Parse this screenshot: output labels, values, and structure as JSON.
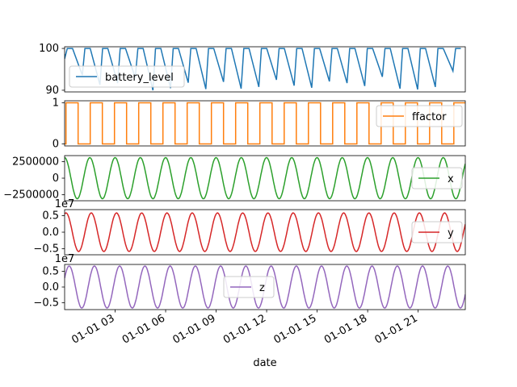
{
  "chart_data": {
    "type": "line",
    "xlabel": "date",
    "x_ticks": [
      "01-01 03",
      "01-01 06",
      "01-01 09",
      "01-01 12",
      "01-01 15",
      "01-01 18",
      "01-01 21"
    ],
    "x_range_hours": [
      0,
      23.8
    ],
    "panels": [
      {
        "series": "battery_level",
        "color": "#1f77b4",
        "legend": "battery_level",
        "legend_position": "center-left",
        "ylim": [
          89.6,
          100.4
        ],
        "yticks": [
          {
            "value": 90,
            "label": "90"
          },
          {
            "value": 100,
            "label": "100"
          }
        ],
        "offset_label": "",
        "pattern": "sawtooth",
        "high": 100,
        "drop_minima": [
          97.5,
          93.6,
          91.3,
          91.7,
          93.0,
          90.0,
          90.5,
          91.8,
          90.3,
          92.0,
          90.4,
          90.8,
          92.5,
          91.1,
          90.6,
          92.1,
          91.7,
          91.0,
          93.2,
          90.4,
          90.2,
          90.8,
          94.6
        ]
      },
      {
        "series": "ffactor",
        "color": "#ff7f0e",
        "legend": "ffactor",
        "legend_position": "upper right",
        "ylim": [
          -0.05,
          1.05
        ],
        "yticks": [
          {
            "value": 0,
            "label": "0"
          },
          {
            "value": 1,
            "label": "1"
          }
        ],
        "offset_label": "",
        "pattern": "square wave",
        "values": [
          0,
          1
        ]
      },
      {
        "series": "x",
        "color": "#2ca02c",
        "legend": "x",
        "legend_position": "center right",
        "ylim": [
          -3400000,
          3400000
        ],
        "yticks": [
          {
            "value": 2500000,
            "label": "2500000"
          },
          {
            "value": 0,
            "label": "0"
          },
          {
            "value": -2500000,
            "label": "−2500000"
          }
        ],
        "offset_label": "",
        "amplitude": 3100000,
        "phase_deg": 90,
        "cycles_per_hour": 0.667
      },
      {
        "series": "y",
        "color": "#d62728",
        "legend": "y",
        "legend_position": "center right",
        "ylim": [
          -0.68,
          0.68
        ],
        "yticks": [
          {
            "value": 0.5,
            "label": "0.5"
          },
          {
            "value": 0.0,
            "label": "0.0"
          },
          {
            "value": -0.5,
            "label": "−0.5"
          }
        ],
        "offset_label": "1e7",
        "amplitude": 0.58,
        "phase_deg": 70,
        "cycles_per_hour": 0.667
      },
      {
        "series": "z",
        "color": "#9467bd",
        "legend": "z",
        "legend_position": "center",
        "ylim": [
          -0.72,
          0.72
        ],
        "yticks": [
          {
            "value": 0.5,
            "label": "0.5"
          },
          {
            "value": 0.0,
            "label": "0.0"
          },
          {
            "value": -0.5,
            "label": "−0.5"
          }
        ],
        "offset_label": "1e7",
        "amplitude": 0.67,
        "phase_deg": 25,
        "cycles_per_hour": 0.667
      }
    ]
  }
}
